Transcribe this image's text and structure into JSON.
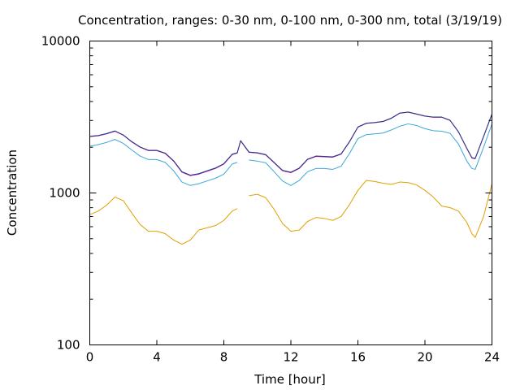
{
  "chart_data": {
    "type": "line",
    "title": "Concentration, ranges: 0-30 nm, 0-100 nm, 0-300 nm, total (3/19/19)",
    "xlabel": "Time [hour]",
    "ylabel": "Concentration",
    "xlim": [
      0,
      24
    ],
    "ylim": [
      100,
      10000
    ],
    "yscale": "log",
    "xticks": [
      0,
      4,
      8,
      12,
      16,
      20,
      24
    ],
    "yticks": [
      100,
      1000,
      10000
    ],
    "grid": false,
    "legend": "none",
    "x": [
      0,
      0.5,
      1,
      1.5,
      2,
      2.5,
      3,
      3.5,
      4,
      4.5,
      5,
      5.5,
      6,
      6.5,
      7,
      7.5,
      8,
      8.5,
      8.8,
      9,
      9.5,
      10,
      10.5,
      11,
      11.5,
      12,
      12.5,
      13,
      13.5,
      14,
      14.5,
      15,
      15.5,
      16,
      16.5,
      17,
      17.5,
      18,
      18.5,
      19,
      19.5,
      20,
      20.5,
      21,
      21.5,
      22,
      22.5,
      22.8,
      23,
      23.5,
      24
    ],
    "series": [
      {
        "color": "#e0a000",
        "values": [
          720,
          760,
          830,
          940,
          890,
          740,
          620,
          560,
          560,
          540,
          490,
          460,
          490,
          570,
          590,
          610,
          660,
          760,
          790,
          null,
          960,
          980,
          930,
          780,
          630,
          560,
          570,
          650,
          690,
          680,
          660,
          700,
          840,
          1040,
          1210,
          1190,
          1160,
          1140,
          1180,
          1170,
          1130,
          1040,
          940,
          820,
          800,
          760,
          640,
          540,
          510,
          700,
          1150
        ]
      },
      {
        "color": "#3aa8d8",
        "values": [
          2030,
          2080,
          2150,
          2250,
          2120,
          1920,
          1750,
          1660,
          1660,
          1590,
          1400,
          1180,
          1120,
          1150,
          1200,
          1250,
          1330,
          1550,
          1590,
          null,
          1650,
          1620,
          1580,
          1380,
          1200,
          1120,
          1210,
          1380,
          1450,
          1450,
          1430,
          1500,
          1820,
          2280,
          2420,
          2450,
          2480,
          2600,
          2750,
          2850,
          2780,
          2650,
          2570,
          2550,
          2470,
          2100,
          1620,
          1450,
          1430,
          2000,
          2850
        ]
      },
      {
        "color": "#cc00cc",
        "values": [
          2350,
          2380,
          2450,
          2550,
          2400,
          2170,
          2000,
          1900,
          1900,
          1820,
          1620,
          1370,
          1300,
          1330,
          1390,
          1450,
          1550,
          1790,
          1830,
          2200,
          1850,
          1830,
          1780,
          1580,
          1400,
          1360,
          1450,
          1660,
          1740,
          1730,
          1720,
          1800,
          2170,
          2710,
          2870,
          2900,
          2950,
          3100,
          3350,
          3400,
          3300,
          3200,
          3150,
          3150,
          3000,
          2520,
          1960,
          1700,
          1680,
          2350,
          3300
        ]
      },
      {
        "color": "#1a3f7a",
        "values": [
          2360,
          2390,
          2460,
          2560,
          2410,
          2180,
          2010,
          1910,
          1910,
          1830,
          1630,
          1380,
          1310,
          1340,
          1400,
          1460,
          1560,
          1800,
          1840,
          2210,
          1860,
          1840,
          1790,
          1590,
          1410,
          1370,
          1460,
          1670,
          1750,
          1740,
          1730,
          1810,
          2180,
          2720,
          2880,
          2910,
          2960,
          3110,
          3360,
          3410,
          3310,
          3210,
          3160,
          3160,
          3010,
          2530,
          1970,
          1710,
          1690,
          2360,
          3310
        ]
      }
    ]
  }
}
